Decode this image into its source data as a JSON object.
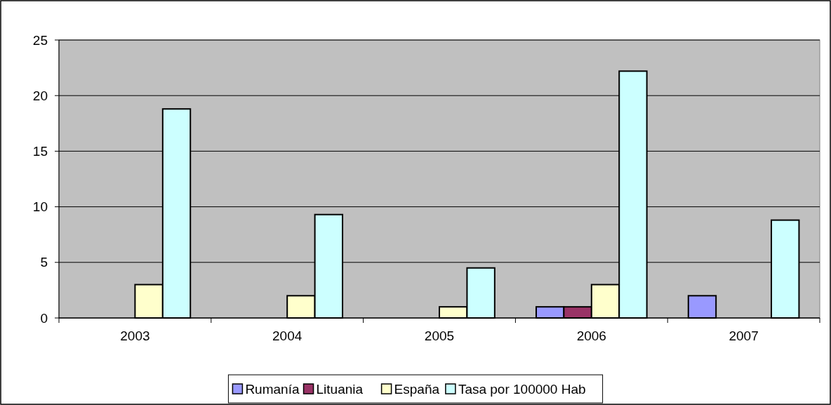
{
  "chart_data": {
    "type": "bar",
    "categories": [
      "2003",
      "2004",
      "2005",
      "2006",
      "2007"
    ],
    "series": [
      {
        "name": "Rumanía",
        "color": "#9999ff",
        "values": [
          0,
          0,
          0,
          1,
          2
        ]
      },
      {
        "name": "Lituania",
        "color": "#993366",
        "values": [
          0,
          0,
          0,
          1,
          0
        ]
      },
      {
        "name": "España",
        "color": "#ffffcc",
        "values": [
          3,
          2,
          1,
          3,
          0
        ]
      },
      {
        "name": "Tasa por 100000 Hab",
        "color": "#ccffff",
        "values": [
          18.8,
          9.3,
          4.5,
          22.2,
          8.8
        ]
      }
    ],
    "ylim": [
      0,
      25
    ],
    "yticks": [
      0,
      5,
      10,
      15,
      20,
      25
    ],
    "grid": "y",
    "legend": "bottom"
  }
}
